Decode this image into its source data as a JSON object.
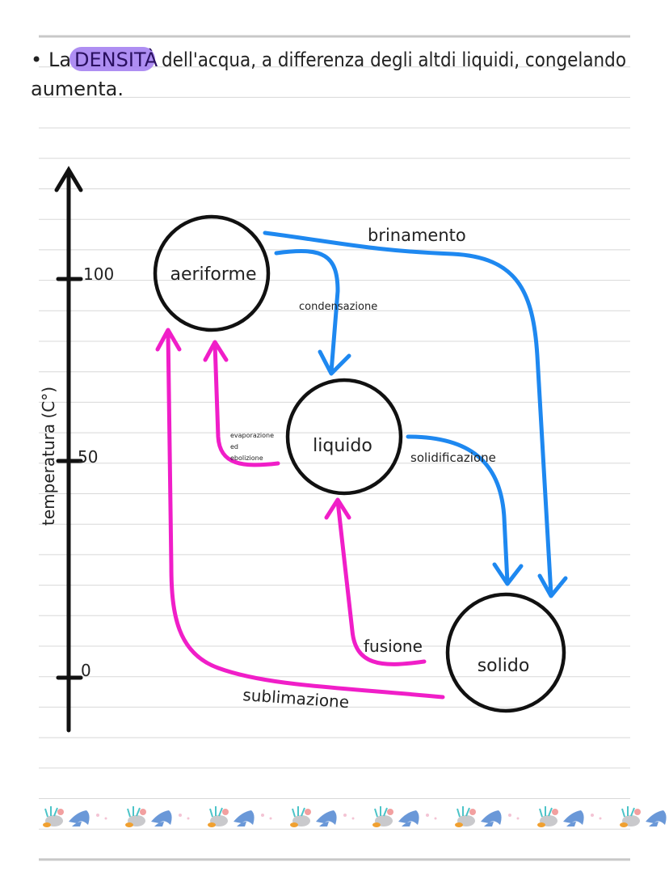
{
  "note": {
    "bullet": "•",
    "line1_pre": "La",
    "highlight": "DENSITÀ",
    "line1_post": "dell'acqua, a differenza degli altdi liquidi, congelando",
    "line2": "aumenta.",
    "highlight_color": "#a07af0"
  },
  "axis": {
    "label": "temperatura (C°)",
    "ticks": [
      "100",
      "50",
      "0"
    ]
  },
  "states": {
    "gas": "aeriforme",
    "liquid": "liquido",
    "solid": "solido"
  },
  "transitions": {
    "brinamento": "brinamento",
    "condensazione": "condensazione",
    "evaporazione": [
      "evaporazione",
      "ed",
      "ebolizione"
    ],
    "solidificazione": "solidificazione",
    "fusione": "fusione",
    "sublimazione": "sublimazione"
  },
  "colors": {
    "blue_arrows": "#1e88f0",
    "pink_arrows": "#f01ec8",
    "ruled_lines": "#d8d8d8"
  },
  "decor": {
    "washi_tape": "dolphin-coral-pattern"
  }
}
